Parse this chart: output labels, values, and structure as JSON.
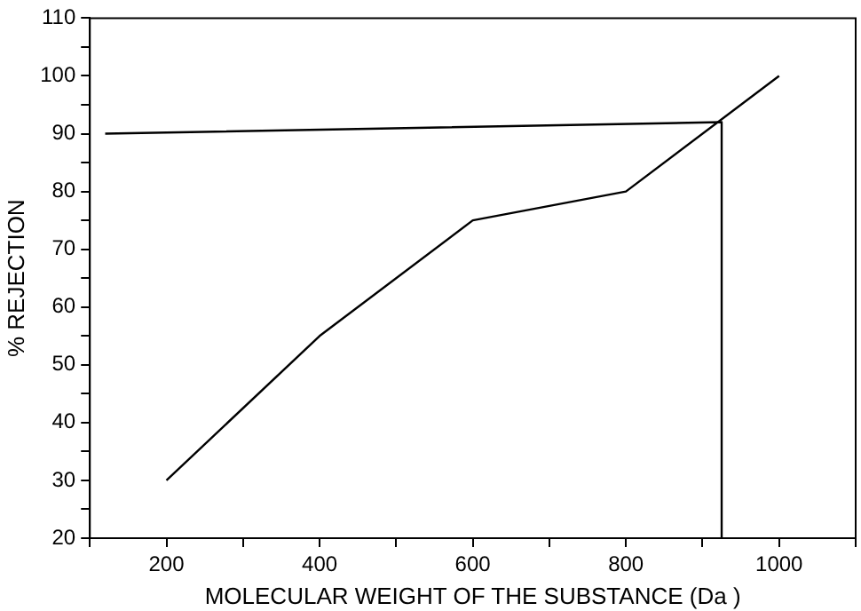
{
  "chart_data": {
    "type": "line",
    "xlabel": "MOLECULAR WEIGHT OF THE SUBSTANCE (Da )",
    "ylabel": "% REJECTION",
    "xlim": [
      100,
      1100
    ],
    "xticks": [
      {
        "value": 100,
        "label": null
      },
      200,
      {
        "value": 300,
        "label": null
      },
      400,
      {
        "value": 500,
        "label": null
      },
      600,
      {
        "value": 700,
        "label": null
      },
      800,
      {
        "value": 900,
        "label": null
      },
      1000,
      {
        "value": 1100,
        "label": null
      }
    ],
    "ylim": [
      20,
      110
    ],
    "yticks": [
      20,
      {
        "value": 25,
        "label": null
      },
      30,
      {
        "value": 35,
        "label": null
      },
      40,
      {
        "value": 45,
        "label": null
      },
      50,
      {
        "value": 55,
        "label": null
      },
      60,
      {
        "value": 65,
        "label": null
      },
      70,
      {
        "value": 75,
        "label": null
      },
      80,
      {
        "value": 85,
        "label": null
      },
      90,
      {
        "value": 95,
        "label": null
      },
      100,
      {
        "value": 105,
        "label": null
      },
      110
    ],
    "grid": false,
    "legend": false,
    "marker": "none",
    "line_style": "solid",
    "series": [
      {
        "color": "#000000",
        "x": [
          200,
          400,
          600,
          800,
          1000
        ],
        "values": [
          30,
          55,
          75,
          80,
          100
        ]
      },
      {
        "color": "#000000",
        "x": [
          120,
          925,
          925
        ],
        "values": [
          90,
          92,
          20
        ]
      }
    ]
  }
}
